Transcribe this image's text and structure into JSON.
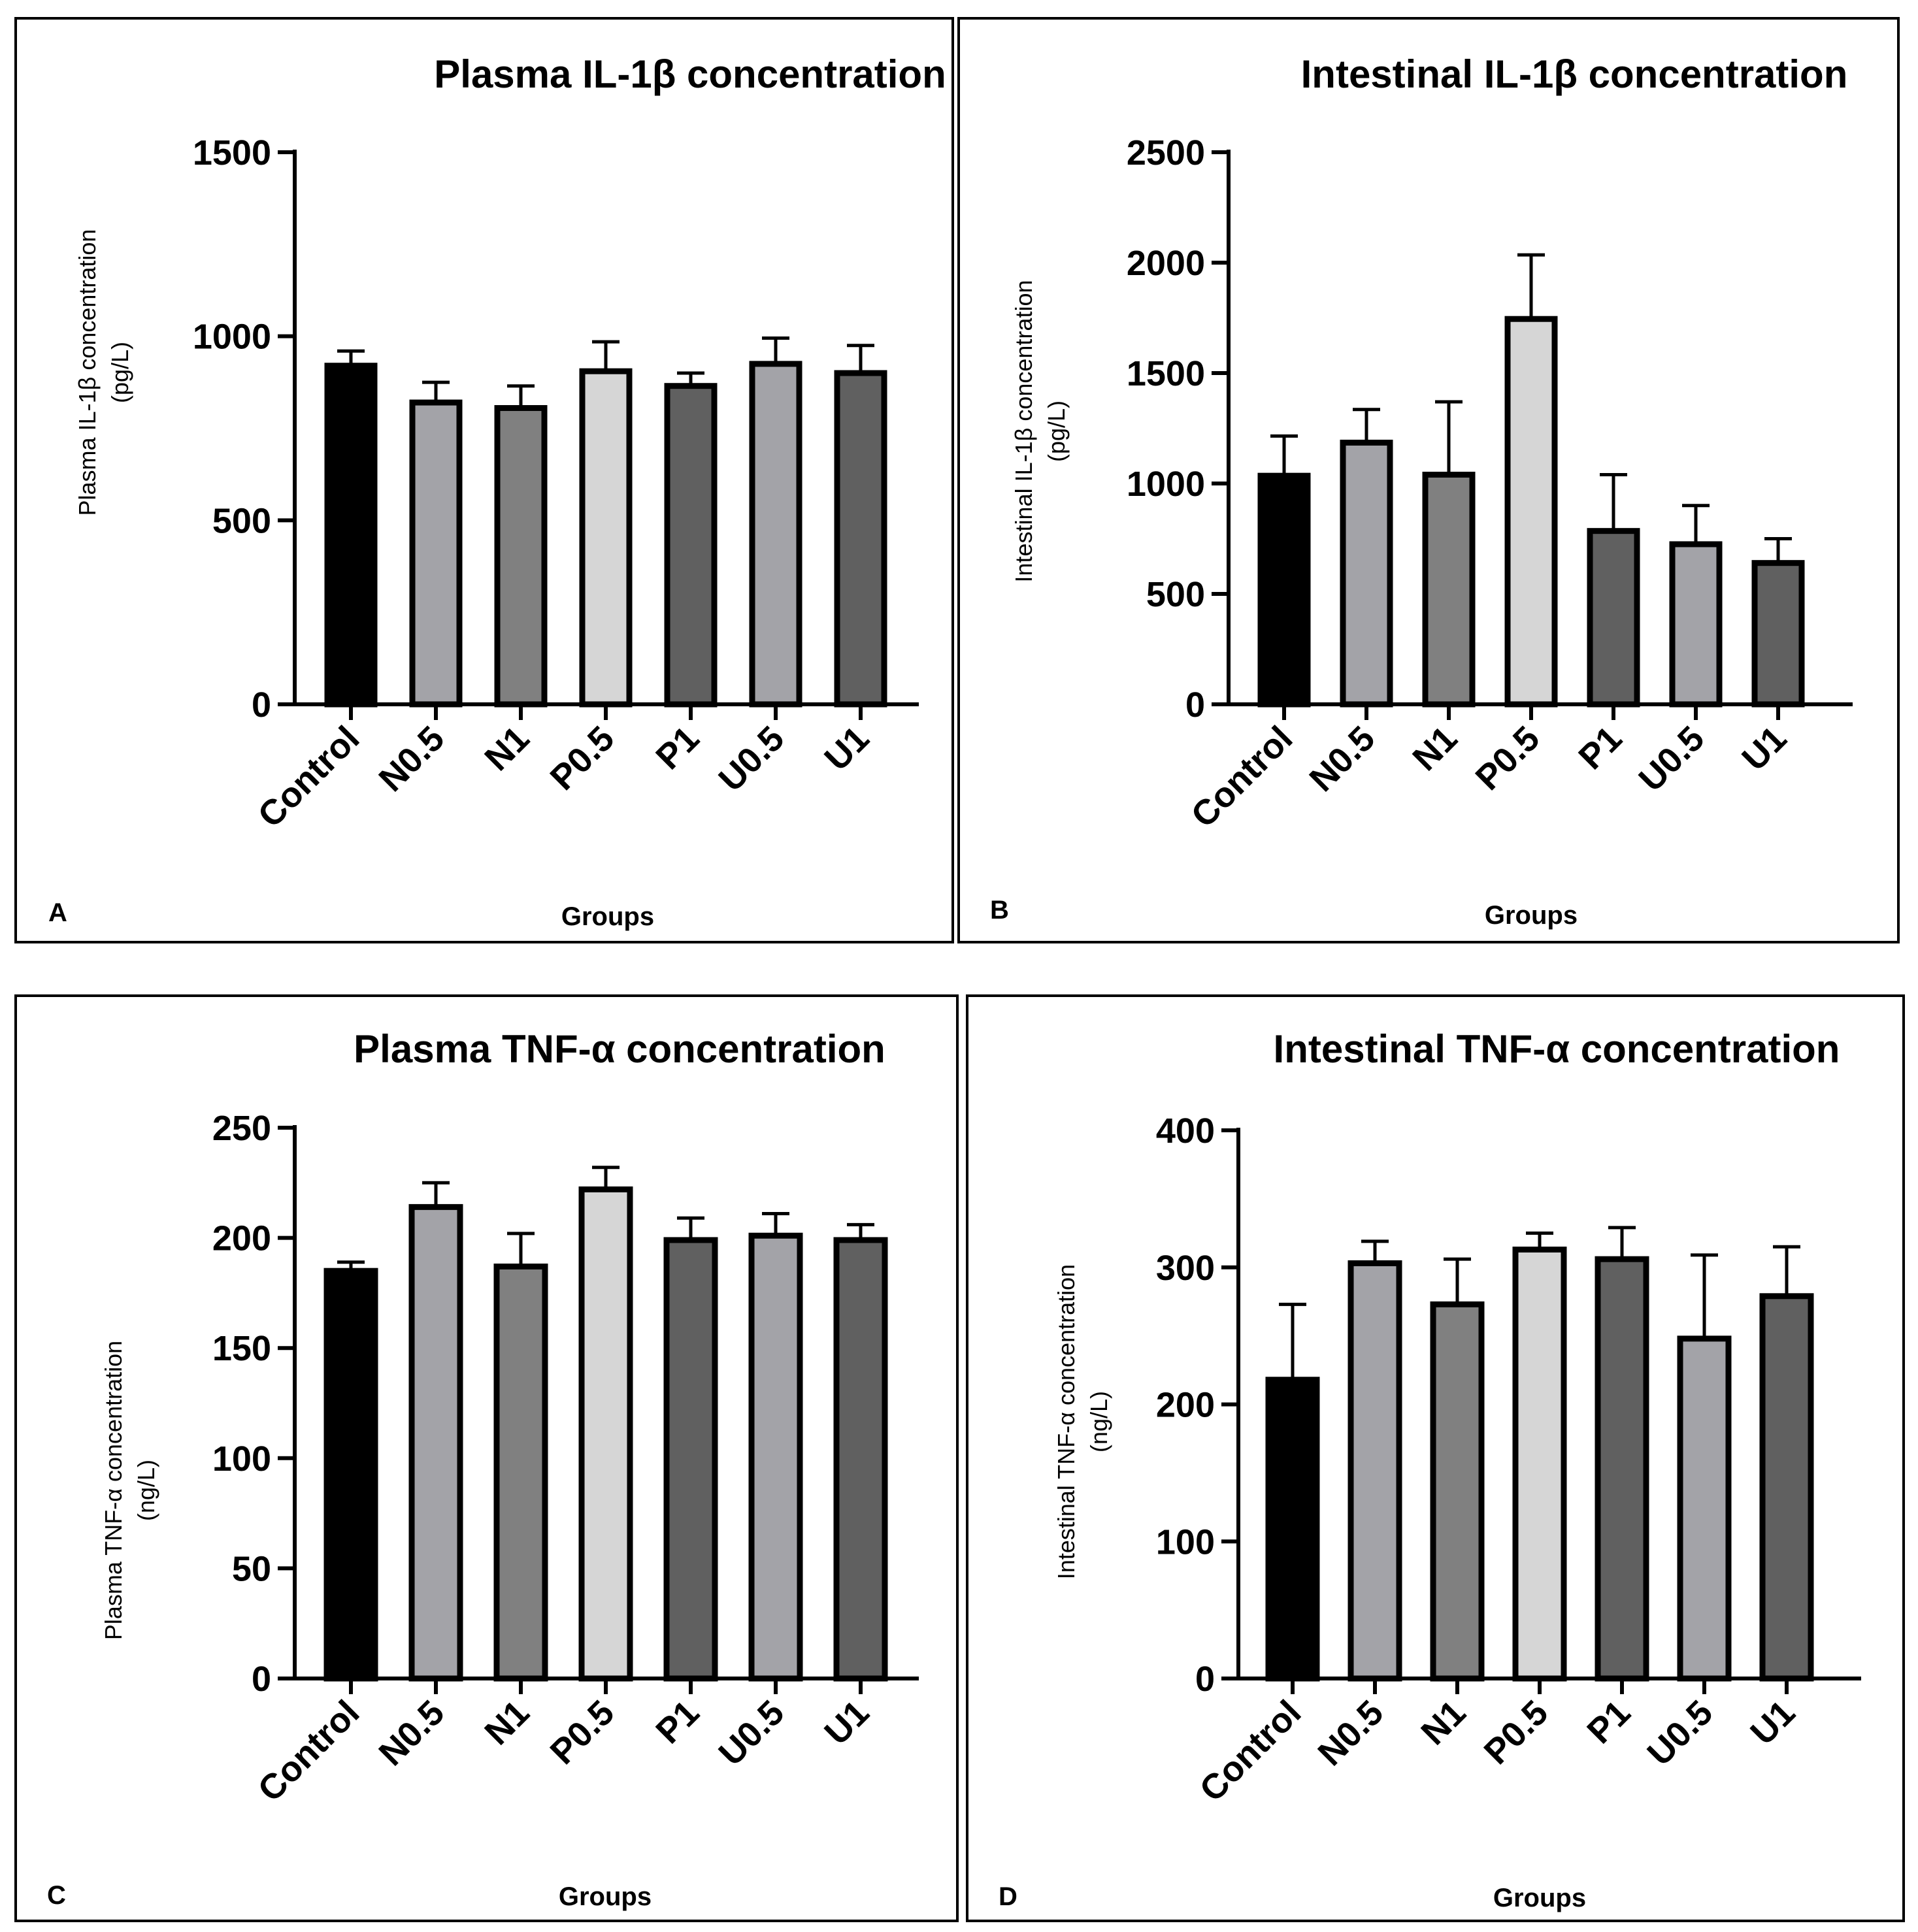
{
  "chart_data": [
    {
      "panel": "A",
      "type": "bar",
      "title": "Plasma IL-1β concentration",
      "ylabel_line1": "Plasma IL-1β concentration",
      "ylabel_line2": "(pg/L)",
      "xlabel": "Groups",
      "categories": [
        "Control",
        "N0.5",
        "N1",
        "P0.5",
        "P1",
        "U0.5",
        "U1"
      ],
      "values": [
        920,
        820,
        805,
        905,
        865,
        925,
        900
      ],
      "errors": [
        40,
        55,
        60,
        80,
        35,
        70,
        75
      ],
      "colors": [
        "#000000",
        "#a3a3a8",
        "#808080",
        "#d6d6d6",
        "#606060",
        "#a3a3a8",
        "#606060"
      ],
      "ylim": [
        0,
        1500
      ],
      "yticks": [
        0,
        500,
        1000,
        1500
      ]
    },
    {
      "panel": "B",
      "type": "bar",
      "title": "Intestinal IL-1β concentration",
      "ylabel_line1": "Intestinal IL-1β concentration",
      "ylabel_line2": "(pg/L)",
      "xlabel": "Groups",
      "categories": [
        "Control",
        "N0.5",
        "N1",
        "P0.5",
        "P1",
        "U0.5",
        "U1"
      ],
      "values": [
        1035,
        1185,
        1040,
        1745,
        785,
        725,
        640
      ],
      "errors": [
        180,
        150,
        330,
        290,
        255,
        175,
        110
      ],
      "colors": [
        "#000000",
        "#a3a3a8",
        "#808080",
        "#d6d6d6",
        "#606060",
        "#a3a3a8",
        "#606060"
      ],
      "ylim": [
        0,
        2500
      ],
      "yticks": [
        0,
        500,
        1000,
        1500,
        2000,
        2500
      ]
    },
    {
      "panel": "C",
      "type": "bar",
      "title": "Plasma TNF-α concentration",
      "ylabel_line1": "Plasma TNF-α concentration",
      "ylabel_line2": "(ng/L)",
      "xlabel": "Groups",
      "categories": [
        "Control",
        "N0.5",
        "N1",
        "P0.5",
        "P1",
        "U0.5",
        "U1"
      ],
      "values": [
        185,
        214,
        187,
        222,
        199,
        201,
        199
      ],
      "errors": [
        4,
        11,
        15,
        10,
        10,
        10,
        7
      ],
      "colors": [
        "#000000",
        "#a3a3a8",
        "#808080",
        "#d6d6d6",
        "#606060",
        "#a3a3a8",
        "#606060"
      ],
      "ylim": [
        0,
        250
      ],
      "yticks": [
        0,
        50,
        100,
        150,
        200,
        250
      ]
    },
    {
      "panel": "D",
      "type": "bar",
      "title": "Intestinal TNF-α concentration",
      "ylabel_line1": "Intestinal TNF-α concentration",
      "ylabel_line2": "(ng/L)",
      "xlabel": "Groups",
      "categories": [
        "Control",
        "N0.5",
        "N1",
        "P0.5",
        "P1",
        "U0.5",
        "U1"
      ],
      "values": [
        218,
        303,
        273,
        313,
        306,
        248,
        279
      ],
      "errors": [
        55,
        16,
        33,
        12,
        23,
        61,
        36
      ],
      "colors": [
        "#000000",
        "#a3a3a8",
        "#808080",
        "#d6d6d6",
        "#606060",
        "#a3a3a8",
        "#606060"
      ],
      "ylim": [
        0,
        400
      ],
      "yticks": [
        0,
        100,
        200,
        300,
        400
      ]
    }
  ]
}
